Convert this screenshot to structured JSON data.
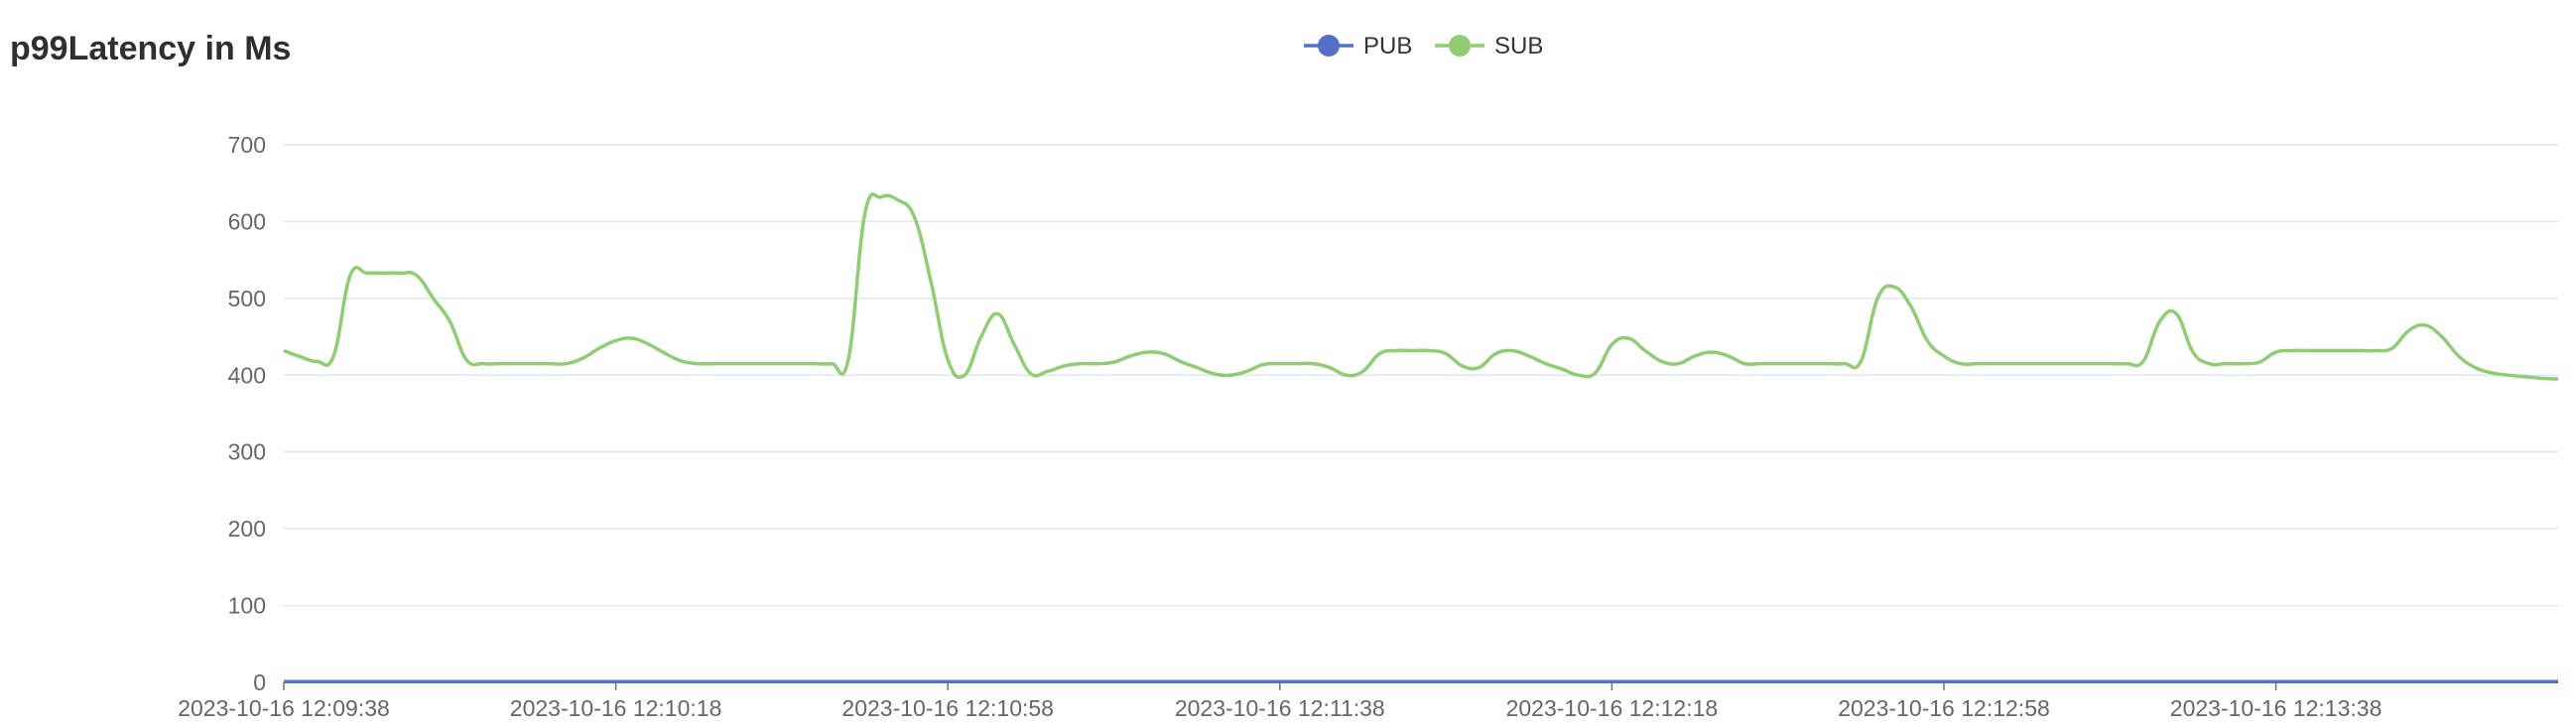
{
  "chart_data": {
    "type": "line",
    "title": "p99Latency in Ms",
    "x": [
      "2023-10-16 12:09:38",
      "2023-10-16 12:09:40",
      "2023-10-16 12:09:42",
      "2023-10-16 12:09:44",
      "2023-10-16 12:09:46",
      "2023-10-16 12:09:48",
      "2023-10-16 12:09:50",
      "2023-10-16 12:09:52",
      "2023-10-16 12:09:54",
      "2023-10-16 12:09:56",
      "2023-10-16 12:09:58",
      "2023-10-16 12:10:00",
      "2023-10-16 12:10:02",
      "2023-10-16 12:10:04",
      "2023-10-16 12:10:06",
      "2023-10-16 12:10:08",
      "2023-10-16 12:10:10",
      "2023-10-16 12:10:12",
      "2023-10-16 12:10:14",
      "2023-10-16 12:10:16",
      "2023-10-16 12:10:18",
      "2023-10-16 12:10:20",
      "2023-10-16 12:10:22",
      "2023-10-16 12:10:24",
      "2023-10-16 12:10:26",
      "2023-10-16 12:10:28",
      "2023-10-16 12:10:30",
      "2023-10-16 12:10:32",
      "2023-10-16 12:10:34",
      "2023-10-16 12:10:36",
      "2023-10-16 12:10:38",
      "2023-10-16 12:10:40",
      "2023-10-16 12:10:42",
      "2023-10-16 12:10:44",
      "2023-10-16 12:10:46",
      "2023-10-16 12:10:48",
      "2023-10-16 12:10:50",
      "2023-10-16 12:10:52",
      "2023-10-16 12:10:54",
      "2023-10-16 12:10:56",
      "2023-10-16 12:10:58",
      "2023-10-16 12:11:00",
      "2023-10-16 12:11:02",
      "2023-10-16 12:11:04",
      "2023-10-16 12:11:06",
      "2023-10-16 12:11:08",
      "2023-10-16 12:11:10",
      "2023-10-16 12:11:12",
      "2023-10-16 12:11:14",
      "2023-10-16 12:11:16",
      "2023-10-16 12:11:18",
      "2023-10-16 12:11:20",
      "2023-10-16 12:11:22",
      "2023-10-16 12:11:24",
      "2023-10-16 12:11:26",
      "2023-10-16 12:11:28",
      "2023-10-16 12:11:30",
      "2023-10-16 12:11:32",
      "2023-10-16 12:11:34",
      "2023-10-16 12:11:36",
      "2023-10-16 12:11:38",
      "2023-10-16 12:11:40",
      "2023-10-16 12:11:42",
      "2023-10-16 12:11:44",
      "2023-10-16 12:11:46",
      "2023-10-16 12:11:48",
      "2023-10-16 12:11:50",
      "2023-10-16 12:11:52",
      "2023-10-16 12:11:54",
      "2023-10-16 12:11:56",
      "2023-10-16 12:11:58",
      "2023-10-16 12:12:00",
      "2023-10-16 12:12:02",
      "2023-10-16 12:12:04",
      "2023-10-16 12:12:06",
      "2023-10-16 12:12:08",
      "2023-10-16 12:12:10",
      "2023-10-16 12:12:12",
      "2023-10-16 12:12:14",
      "2023-10-16 12:12:16",
      "2023-10-16 12:12:18",
      "2023-10-16 12:12:20",
      "2023-10-16 12:12:22",
      "2023-10-16 12:12:24",
      "2023-10-16 12:12:26",
      "2023-10-16 12:12:28",
      "2023-10-16 12:12:30",
      "2023-10-16 12:12:32",
      "2023-10-16 12:12:34",
      "2023-10-16 12:12:36",
      "2023-10-16 12:12:38",
      "2023-10-16 12:12:40",
      "2023-10-16 12:12:42",
      "2023-10-16 12:12:44",
      "2023-10-16 12:12:46",
      "2023-10-16 12:12:48",
      "2023-10-16 12:12:50",
      "2023-10-16 12:12:52",
      "2023-10-16 12:12:54",
      "2023-10-16 12:12:56",
      "2023-10-16 12:12:58",
      "2023-10-16 12:13:00",
      "2023-10-16 12:13:02",
      "2023-10-16 12:13:04",
      "2023-10-16 12:13:06",
      "2023-10-16 12:13:08",
      "2023-10-16 12:13:10",
      "2023-10-16 12:13:12",
      "2023-10-16 12:13:14",
      "2023-10-16 12:13:16",
      "2023-10-16 12:13:18",
      "2023-10-16 12:13:20",
      "2023-10-16 12:13:22",
      "2023-10-16 12:13:24",
      "2023-10-16 12:13:26",
      "2023-10-16 12:13:28",
      "2023-10-16 12:13:30",
      "2023-10-16 12:13:32",
      "2023-10-16 12:13:34",
      "2023-10-16 12:13:36",
      "2023-10-16 12:13:38",
      "2023-10-16 12:13:40",
      "2023-10-16 12:13:42",
      "2023-10-16 12:13:44",
      "2023-10-16 12:13:46",
      "2023-10-16 12:13:48",
      "2023-10-16 12:13:50",
      "2023-10-16 12:13:52",
      "2023-10-16 12:13:54",
      "2023-10-16 12:13:56",
      "2023-10-16 12:13:58",
      "2023-10-16 12:14:00",
      "2023-10-16 12:14:02",
      "2023-10-16 12:14:04",
      "2023-10-16 12:14:06",
      "2023-10-16 12:14:08",
      "2023-10-16 12:14:10",
      "2023-10-16 12:14:12"
    ],
    "x_tick_labels": [
      "2023-10-16 12:09:38",
      "2023-10-16 12:10:18",
      "2023-10-16 12:10:58",
      "2023-10-16 12:11:38",
      "2023-10-16 12:12:18",
      "2023-10-16 12:12:58",
      "2023-10-16 12:13:38"
    ],
    "ylim": [
      0,
      700
    ],
    "y_ticks": [
      0,
      100,
      200,
      300,
      400,
      500,
      600,
      700
    ],
    "grid": true,
    "legend_position": "top-center",
    "xlabel": "",
    "ylabel": "",
    "series": [
      {
        "name": "PUB",
        "color": "#5470c6",
        "values": [
          1,
          1,
          1,
          1,
          1,
          1,
          1,
          1,
          1,
          1,
          1,
          1,
          1,
          1,
          1,
          1,
          1,
          1,
          1,
          1,
          1,
          1,
          1,
          1,
          1,
          1,
          1,
          1,
          1,
          1,
          1,
          1,
          1,
          1,
          1,
          1,
          1,
          1,
          1,
          1,
          1,
          1,
          1,
          1,
          1,
          1,
          1,
          1,
          1,
          1,
          1,
          1,
          1,
          1,
          1,
          1,
          1,
          1,
          1,
          1,
          1,
          1,
          1,
          1,
          1,
          1,
          1,
          1,
          1,
          1,
          1,
          1,
          1,
          1,
          1,
          1,
          1,
          1,
          1,
          1,
          1,
          1,
          1,
          1,
          1,
          1,
          1,
          1,
          1,
          1,
          1,
          1,
          1,
          1,
          1,
          1,
          1,
          1,
          1,
          1,
          1,
          1,
          1,
          1,
          1,
          1,
          1,
          1,
          1,
          1,
          1,
          1,
          1,
          1,
          1,
          1,
          1,
          1,
          1,
          1,
          1,
          1,
          1,
          1,
          1,
          1,
          1,
          1,
          1,
          1,
          1,
          1,
          1,
          1,
          1,
          1,
          1,
          1
        ]
      },
      {
        "name": "SUB",
        "color": "#91cc75",
        "values": [
          432,
          424,
          418,
          425,
          530,
          533,
          533,
          533,
          530,
          500,
          470,
          420,
          415,
          415,
          415,
          415,
          415,
          415,
          422,
          435,
          445,
          448,
          440,
          428,
          418,
          415,
          415,
          415,
          415,
          415,
          415,
          415,
          415,
          415,
          420,
          610,
          632,
          628,
          605,
          520,
          420,
          400,
          450,
          480,
          440,
          402,
          405,
          412,
          415,
          415,
          417,
          425,
          430,
          428,
          418,
          410,
          402,
          400,
          405,
          414,
          415,
          415,
          415,
          410,
          400,
          405,
          428,
          432,
          432,
          432,
          428,
          412,
          410,
          428,
          432,
          425,
          415,
          408,
          400,
          403,
          440,
          448,
          432,
          418,
          415,
          425,
          430,
          425,
          415,
          415,
          415,
          415,
          415,
          415,
          415,
          418,
          500,
          515,
          490,
          445,
          425,
          415,
          415,
          415,
          415,
          415,
          415,
          415,
          415,
          415,
          415,
          415,
          418,
          470,
          480,
          430,
          415,
          415,
          415,
          417,
          430,
          432,
          432,
          432,
          432,
          432,
          432,
          435,
          458,
          465,
          450,
          425,
          410,
          403,
          400,
          398,
          396,
          395
        ]
      }
    ]
  }
}
